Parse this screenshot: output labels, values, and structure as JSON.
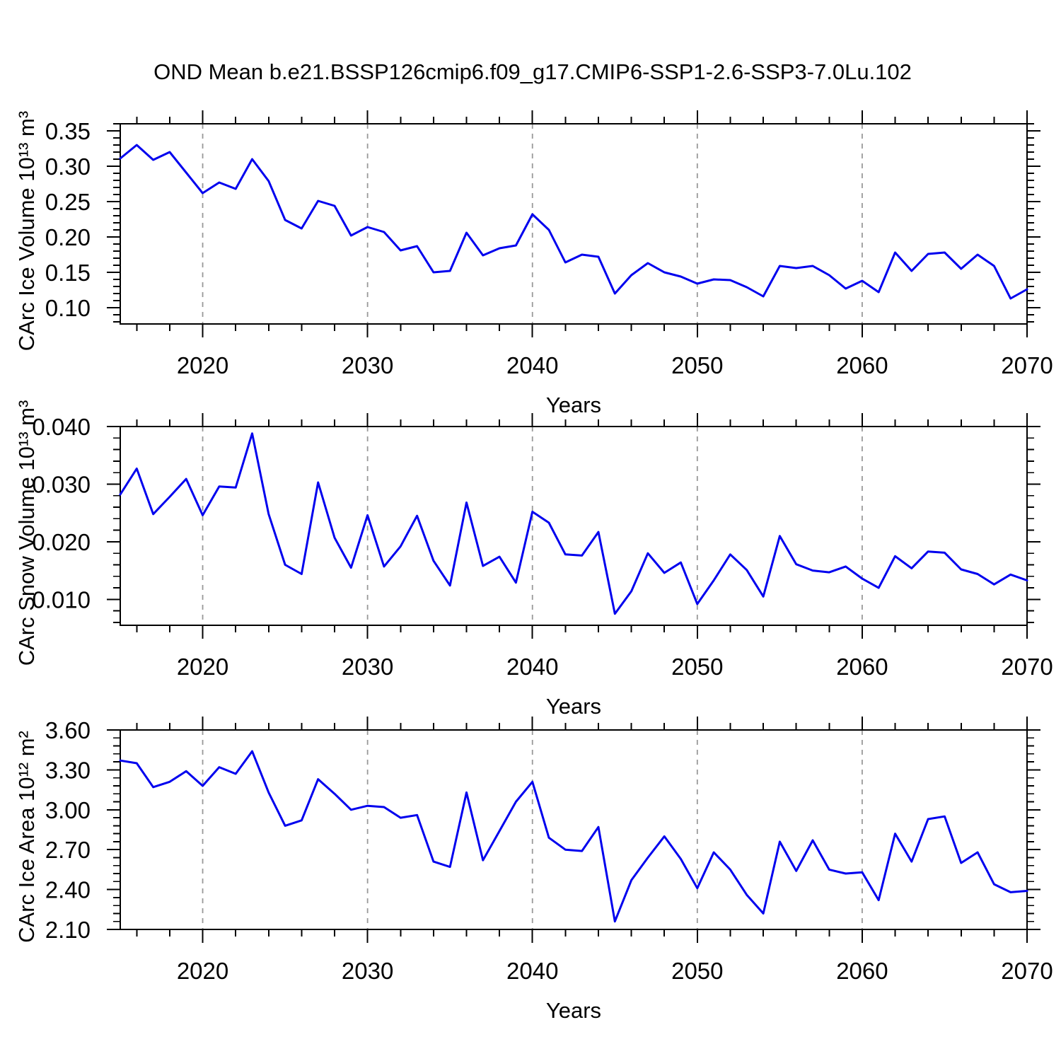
{
  "title": "OND Mean b.e21.BSSP126cmip6.f09_g17.CMIP6-SSP1-2.6-SSP3-7.0Lu.102",
  "colors": {
    "line": "#0000ee",
    "grid": "#999999",
    "axis": "#000000",
    "background": "#ffffff"
  },
  "x_axis": {
    "label": "Years",
    "range": [
      2015,
      2070
    ],
    "major_ticks": [
      2020,
      2030,
      2040,
      2050,
      2060,
      2070
    ],
    "minor_step": 2,
    "gridlines": [
      2020,
      2030,
      2040,
      2050,
      2060
    ]
  },
  "chart_data": [
    {
      "type": "line",
      "id": "ice-volume",
      "ylabel": "CArc Ice Volume 10¹³ m³",
      "xlabel": "Years",
      "ylim": [
        0.077,
        0.36
      ],
      "yticks": [
        0.1,
        0.15,
        0.2,
        0.25,
        0.3,
        0.35
      ],
      "ytick_labels": [
        "0.10",
        "0.15",
        "0.20",
        "0.25",
        "0.30",
        "0.35"
      ],
      "y_minor_step": 0.01,
      "x": [
        2015,
        2016,
        2017,
        2018,
        2019,
        2020,
        2021,
        2022,
        2023,
        2024,
        2025,
        2026,
        2027,
        2028,
        2029,
        2030,
        2031,
        2032,
        2033,
        2034,
        2035,
        2036,
        2037,
        2038,
        2039,
        2040,
        2041,
        2042,
        2043,
        2044,
        2045,
        2046,
        2047,
        2048,
        2049,
        2050,
        2051,
        2052,
        2053,
        2054,
        2055,
        2056,
        2057,
        2058,
        2059,
        2060,
        2061,
        2062,
        2063,
        2064,
        2065,
        2066,
        2067,
        2068,
        2069,
        2070
      ],
      "values": [
        0.311,
        0.33,
        0.309,
        0.32,
        0.291,
        0.262,
        0.277,
        0.268,
        0.31,
        0.279,
        0.224,
        0.212,
        0.251,
        0.244,
        0.202,
        0.214,
        0.207,
        0.181,
        0.187,
        0.15,
        0.152,
        0.206,
        0.174,
        0.184,
        0.188,
        0.232,
        0.21,
        0.164,
        0.175,
        0.172,
        0.12,
        0.146,
        0.163,
        0.15,
        0.144,
        0.134,
        0.14,
        0.139,
        0.129,
        0.116,
        0.159,
        0.156,
        0.159,
        0.146,
        0.127,
        0.138,
        0.122,
        0.178,
        0.152,
        0.176,
        0.178,
        0.155,
        0.175,
        0.159,
        0.113,
        0.126
      ]
    },
    {
      "type": "line",
      "id": "snow-volume",
      "ylabel": "CArc Snow Volume 10¹³ m³",
      "xlabel": "Years",
      "ylim": [
        0.0055,
        0.04
      ],
      "yticks": [
        0.01,
        0.02,
        0.03,
        0.04
      ],
      "ytick_labels": [
        "0.010",
        "0.020",
        "0.030",
        "0.040"
      ],
      "y_minor_step": 0.002,
      "x": [
        2015,
        2016,
        2017,
        2018,
        2019,
        2020,
        2021,
        2022,
        2023,
        2024,
        2025,
        2026,
        2027,
        2028,
        2029,
        2030,
        2031,
        2032,
        2033,
        2034,
        2035,
        2036,
        2037,
        2038,
        2039,
        2040,
        2041,
        2042,
        2043,
        2044,
        2045,
        2046,
        2047,
        2048,
        2049,
        2050,
        2051,
        2052,
        2053,
        2054,
        2055,
        2056,
        2057,
        2058,
        2059,
        2060,
        2061,
        2062,
        2063,
        2064,
        2065,
        2066,
        2067,
        2068,
        2069,
        2070
      ],
      "values": [
        0.0282,
        0.0327,
        0.0248,
        0.0278,
        0.0309,
        0.0246,
        0.0296,
        0.0294,
        0.0388,
        0.0248,
        0.016,
        0.0144,
        0.0303,
        0.0207,
        0.0155,
        0.0246,
        0.0157,
        0.0192,
        0.0245,
        0.0167,
        0.0124,
        0.0268,
        0.0158,
        0.0174,
        0.0129,
        0.0252,
        0.0233,
        0.0178,
        0.0176,
        0.0217,
        0.0075,
        0.0114,
        0.018,
        0.0146,
        0.0164,
        0.0092,
        0.0133,
        0.0178,
        0.0151,
        0.0105,
        0.021,
        0.0161,
        0.015,
        0.0147,
        0.0157,
        0.0136,
        0.012,
        0.0175,
        0.0154,
        0.0183,
        0.0181,
        0.0152,
        0.0144,
        0.0126,
        0.0143,
        0.0133
      ]
    },
    {
      "type": "line",
      "id": "ice-area",
      "ylabel": "CArc Ice Area 10¹² m²",
      "xlabel": "Years",
      "ylim": [
        2.1,
        3.6
      ],
      "yticks": [
        2.1,
        2.4,
        2.7,
        3.0,
        3.3,
        3.6
      ],
      "ytick_labels": [
        "2.10",
        "2.40",
        "2.70",
        "3.00",
        "3.30",
        "3.60"
      ],
      "y_minor_step": 0.06,
      "x": [
        2015,
        2016,
        2017,
        2018,
        2019,
        2020,
        2021,
        2022,
        2023,
        2024,
        2025,
        2026,
        2027,
        2028,
        2029,
        2030,
        2031,
        2032,
        2033,
        2034,
        2035,
        2036,
        2037,
        2038,
        2039,
        2040,
        2041,
        2042,
        2043,
        2044,
        2045,
        2046,
        2047,
        2048,
        2049,
        2050,
        2051,
        2052,
        2053,
        2054,
        2055,
        2056,
        2057,
        2058,
        2059,
        2060,
        2061,
        2062,
        2063,
        2064,
        2065,
        2066,
        2067,
        2068,
        2069,
        2070
      ],
      "values": [
        3.37,
        3.35,
        3.17,
        3.21,
        3.29,
        3.18,
        3.32,
        3.27,
        3.44,
        3.13,
        2.88,
        2.92,
        3.23,
        3.12,
        3.0,
        3.03,
        3.02,
        2.94,
        2.96,
        2.61,
        2.57,
        3.13,
        2.62,
        2.84,
        3.06,
        3.21,
        2.79,
        2.7,
        2.69,
        2.87,
        2.16,
        2.47,
        2.64,
        2.8,
        2.63,
        2.41,
        2.68,
        2.55,
        2.36,
        2.22,
        2.76,
        2.54,
        2.77,
        2.55,
        2.52,
        2.53,
        2.32,
        2.82,
        2.61,
        2.93,
        2.95,
        2.6,
        2.68,
        2.44,
        2.38,
        2.39
      ]
    }
  ]
}
